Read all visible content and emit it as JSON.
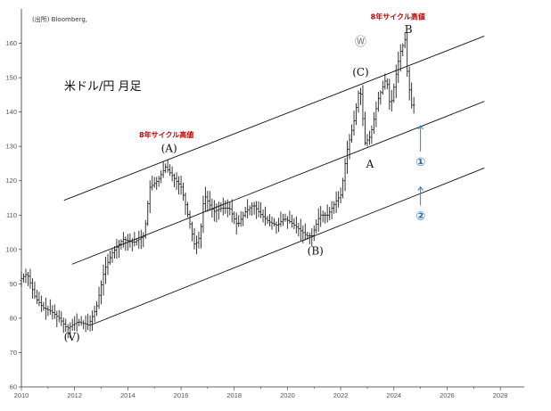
{
  "chart_data": {
    "type": "bar",
    "subtype": "monthly OHLC bars",
    "title": "米ドル/円 月足",
    "source": "(出所) Bloomberg,",
    "xlabel": "",
    "ylabel": "",
    "xlim": [
      2010,
      2028.9
    ],
    "ylim": [
      60,
      170
    ],
    "x_ticks": [
      "2010",
      "2012",
      "2014",
      "2016",
      "2018",
      "2020",
      "2022",
      "2024",
      "2026",
      "2028"
    ],
    "y_ticks": [
      "60",
      "70",
      "80",
      "90",
      "100",
      "110",
      "120",
      "130",
      "140",
      "150",
      "160"
    ],
    "grid": false,
    "price_path": [
      [
        2010.0,
        91
      ],
      [
        2010.3,
        93
      ],
      [
        2010.6,
        86
      ],
      [
        2010.9,
        83
      ],
      [
        2011.2,
        82
      ],
      [
        2011.5,
        80
      ],
      [
        2011.8,
        77
      ],
      [
        2012.2,
        79
      ],
      [
        2012.6,
        78
      ],
      [
        2012.9,
        83
      ],
      [
        2013.2,
        94
      ],
      [
        2013.5,
        99
      ],
      [
        2013.9,
        103
      ],
      [
        2014.3,
        102
      ],
      [
        2014.7,
        104
      ],
      [
        2014.9,
        118
      ],
      [
        2015.2,
        120
      ],
      [
        2015.5,
        124
      ],
      [
        2015.8,
        121
      ],
      [
        2016.1,
        118
      ],
      [
        2016.4,
        108
      ],
      [
        2016.6,
        101
      ],
      [
        2016.8,
        104
      ],
      [
        2016.95,
        116
      ],
      [
        2017.3,
        111
      ],
      [
        2017.6,
        112
      ],
      [
        2017.9,
        112
      ],
      [
        2018.2,
        107
      ],
      [
        2018.5,
        111
      ],
      [
        2018.8,
        113
      ],
      [
        2019.1,
        110
      ],
      [
        2019.4,
        108
      ],
      [
        2019.7,
        107
      ],
      [
        2019.95,
        109
      ],
      [
        2020.2,
        108
      ],
      [
        2020.5,
        106
      ],
      [
        2020.8,
        104
      ],
      [
        2021.0,
        104
      ],
      [
        2021.3,
        110
      ],
      [
        2021.6,
        110
      ],
      [
        2021.9,
        114
      ],
      [
        2022.1,
        116
      ],
      [
        2022.3,
        128
      ],
      [
        2022.6,
        138
      ],
      [
        2022.8,
        148
      ],
      [
        2023.0,
        131
      ],
      [
        2023.2,
        133
      ],
      [
        2023.5,
        144
      ],
      [
        2023.8,
        150
      ],
      [
        2023.95,
        141
      ],
      [
        2024.1,
        148
      ],
      [
        2024.3,
        157
      ],
      [
        2024.5,
        161
      ],
      [
        2024.6,
        150
      ],
      [
        2024.75,
        142
      ]
    ],
    "channel_lines": [
      {
        "x": [
          2011.6,
          2027.4
        ],
        "y": [
          114.3,
          162.1
        ]
      },
      {
        "x": [
          2011.9,
          2027.4
        ],
        "y": [
          95.7,
          143.1
        ]
      },
      {
        "x": [
          2012.6,
          2027.4
        ],
        "y": [
          78.0,
          123.7
        ]
      }
    ],
    "annotations": [
      {
        "text": "(V)",
        "x": 2011.9,
        "y": 73.5,
        "style": "wave"
      },
      {
        "text": "(A)",
        "x": 2015.55,
        "y": 128.3,
        "style": "wave"
      },
      {
        "text": "(B)",
        "x": 2021.05,
        "y": 98.5,
        "style": "wave"
      },
      {
        "text": "(C)",
        "x": 2022.75,
        "y": 150.5,
        "style": "wave"
      },
      {
        "text": "A",
        "x": 2023.1,
        "y": 123.8,
        "style": "wave"
      },
      {
        "text": "B",
        "x": 2024.55,
        "y": 163.0,
        "style": "wave"
      },
      {
        "text": "Ⓦ",
        "x": 2022.75,
        "y": 159.3,
        "style": "circgray"
      },
      {
        "text": "8年サイクル高値",
        "x": 2015.45,
        "y": 132.7,
        "style": "red"
      },
      {
        "text": "8年サイクル高値",
        "x": 2024.15,
        "y": 167.0,
        "style": "red"
      },
      {
        "text": "①",
        "x": 2025.0,
        "y": 124.3,
        "style": "circ"
      },
      {
        "text": "②",
        "x": 2025.0,
        "y": 108.6,
        "style": "circ"
      }
    ],
    "arrows": [
      {
        "x": 2025.0,
        "y_from": 128.5,
        "y_to": 136.0
      },
      {
        "x": 2025.0,
        "y_from": 112.8,
        "y_to": 118.2
      }
    ]
  }
}
